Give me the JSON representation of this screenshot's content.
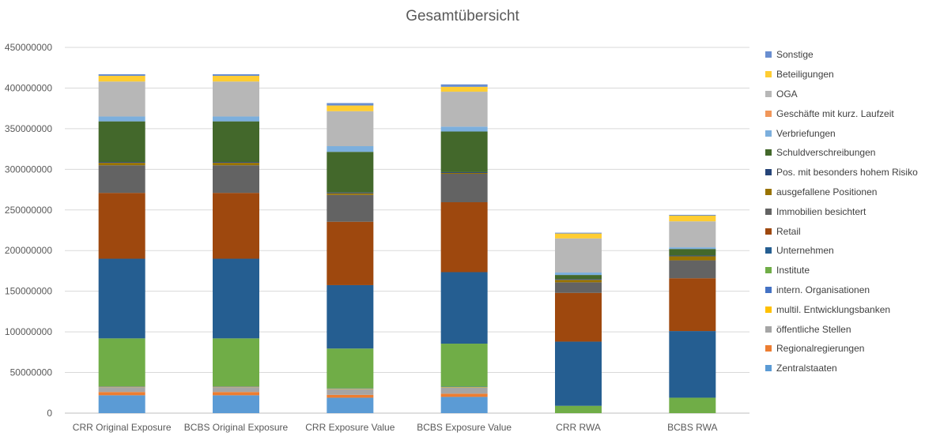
{
  "chart_data": {
    "type": "bar",
    "stacked": true,
    "title": "Gesamtübersicht",
    "xlabel": "",
    "ylabel": "",
    "ylim": [
      0,
      450000000
    ],
    "yticks": [
      0,
      50000000,
      100000000,
      150000000,
      200000000,
      250000000,
      300000000,
      350000000,
      400000000,
      450000000
    ],
    "grid": true,
    "legend_position": "right",
    "categories": [
      "CRR Original Exposure",
      "BCBS Original Exposure",
      "CRR Exposure Value",
      "BCBS Exposure Value",
      "CRR RWA",
      "BCBS RWA"
    ],
    "series": [
      {
        "name": "Zentralstaaten",
        "color": "#5b9bd5",
        "values": [
          22000000,
          22000000,
          19000000,
          20000000,
          0,
          0
        ]
      },
      {
        "name": "Regionalregierungen",
        "color": "#ed7d31",
        "values": [
          4000000,
          4000000,
          3500000,
          4000000,
          0,
          0
        ]
      },
      {
        "name": "öffentliche Stellen",
        "color": "#a5a5a5",
        "values": [
          6000000,
          6000000,
          7000000,
          7500000,
          0,
          0
        ]
      },
      {
        "name": "multil. Entwicklungsbanken",
        "color": "#ffc000",
        "values": [
          500000,
          500000,
          500000,
          500000,
          0,
          0
        ]
      },
      {
        "name": "intern. Organisationen",
        "color": "#4472c4",
        "values": [
          500000,
          500000,
          500000,
          500000,
          0,
          0
        ]
      },
      {
        "name": "Institute",
        "color": "#70ad47",
        "values": [
          59000000,
          59000000,
          49000000,
          53000000,
          9000000,
          19000000
        ]
      },
      {
        "name": "Unternehmen",
        "color": "#255e91",
        "values": [
          98000000,
          98000000,
          78000000,
          88000000,
          79000000,
          82000000
        ]
      },
      {
        "name": "Retail",
        "color": "#9e480e",
        "values": [
          81000000,
          81000000,
          78000000,
          86000000,
          60000000,
          65000000
        ]
      },
      {
        "name": "Immobilien besichtert",
        "color": "#636363",
        "values": [
          34000000,
          34000000,
          33000000,
          35000000,
          13000000,
          22000000
        ]
      },
      {
        "name": "ausgefallene Positionen",
        "color": "#997300",
        "values": [
          3000000,
          3000000,
          2000000,
          1000000,
          3000000,
          5000000
        ]
      },
      {
        "name": "Pos. mit besonders hohem Risiko",
        "color": "#264478",
        "values": [
          1000000,
          1000000,
          1000000,
          1000000,
          1000000,
          1000000
        ]
      },
      {
        "name": "Schuldverschreibungen",
        "color": "#43682b",
        "values": [
          50000000,
          50000000,
          50000000,
          50000000,
          5000000,
          8000000
        ]
      },
      {
        "name": "Verbriefungen",
        "color": "#7cafdd",
        "values": [
          6000000,
          6000000,
          7000000,
          6000000,
          3000000,
          2000000
        ]
      },
      {
        "name": "Geschäfte mit kurz. Laufzeit",
        "color": "#f1975a",
        "values": [
          0,
          0,
          0,
          0,
          0,
          0
        ]
      },
      {
        "name": "OGA",
        "color": "#b7b7b7",
        "values": [
          43000000,
          43000000,
          43000000,
          43000000,
          42000000,
          32000000
        ]
      },
      {
        "name": "Beteiligungen",
        "color": "#ffcd33",
        "values": [
          7000000,
          7000000,
          7000000,
          6000000,
          6000000,
          7000000
        ]
      },
      {
        "name": "Sonstige",
        "color": "#698ed0",
        "values": [
          2000000,
          2000000,
          3000000,
          3000000,
          1000000,
          1000000
        ]
      }
    ]
  }
}
